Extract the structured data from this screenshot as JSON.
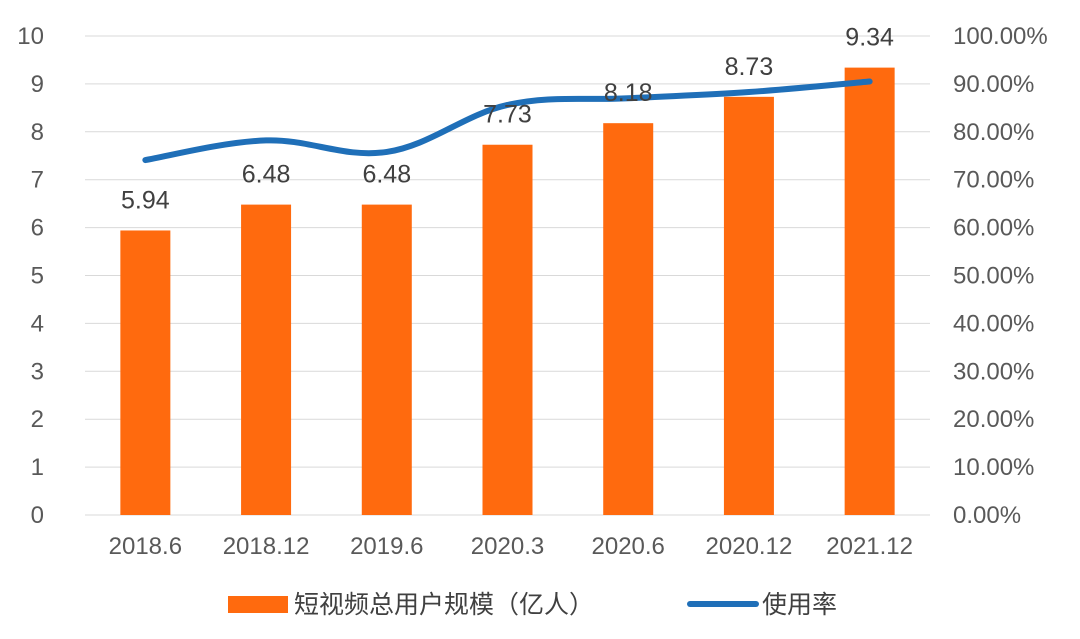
{
  "chart_data": {
    "type": "bar+line",
    "categories": [
      "2018.6",
      "2018.12",
      "2019.6",
      "2020.3",
      "2020.6",
      "2020.12",
      "2021.12"
    ],
    "series": [
      {
        "name": "短视频总用户规模（亿人）",
        "type": "bar",
        "axis": "left",
        "color": "#FF6A0E",
        "values": [
          5.94,
          6.48,
          6.48,
          7.73,
          8.18,
          8.73,
          9.34
        ],
        "labels": [
          "5.94",
          "6.48",
          "6.48",
          "7.73",
          "8.18",
          "8.73",
          "9.34"
        ]
      },
      {
        "name": "使用率",
        "type": "line",
        "axis": "right",
        "color": "#1F6FB8",
        "values": [
          74.1,
          78.2,
          75.8,
          85.6,
          87.0,
          88.3,
          90.5
        ]
      }
    ],
    "y_left": {
      "min": 0,
      "max": 10,
      "step": 1,
      "ticks": [
        "0",
        "1",
        "2",
        "3",
        "4",
        "5",
        "6",
        "7",
        "8",
        "9",
        "10"
      ]
    },
    "y_right": {
      "min": 0,
      "max": 100,
      "step": 10,
      "ticks": [
        "0.00%",
        "10.00%",
        "20.00%",
        "30.00%",
        "40.00%",
        "50.00%",
        "60.00%",
        "70.00%",
        "80.00%",
        "90.00%",
        "100.00%"
      ]
    },
    "grid": true,
    "legend": "bottom",
    "title": "",
    "xlabel": "",
    "ylabel": ""
  }
}
